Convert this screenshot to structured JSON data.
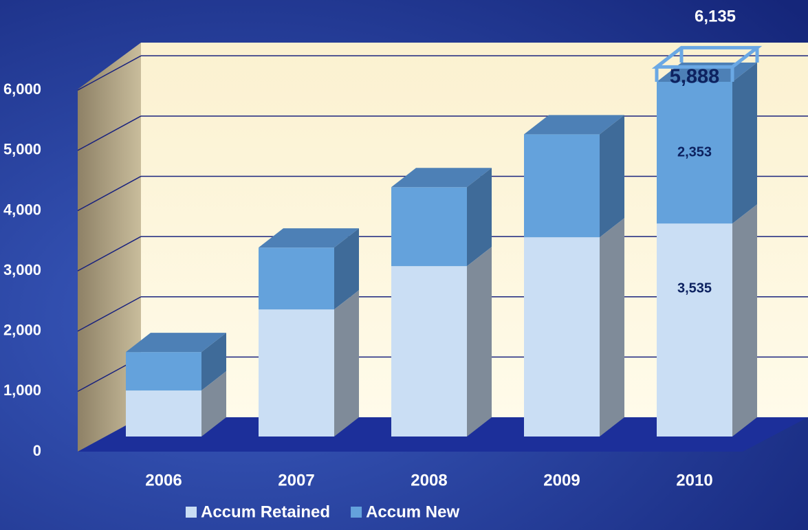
{
  "chart_data": {
    "type": "bar3d_stacked",
    "categories": [
      "2006",
      "2007",
      "2008",
      "2009",
      "2010"
    ],
    "series": [
      {
        "name": "Accum Retained",
        "color": "#cadef4",
        "values": [
          764,
          2109,
          2828,
          3307,
          3535
        ],
        "value_labels": [
          null,
          null,
          null,
          null,
          "3,535"
        ]
      },
      {
        "name": "Accum New",
        "color": "#64a2dc",
        "values": [
          638,
          1027,
          1311,
          1710,
          2353
        ],
        "value_labels": [
          null,
          null,
          null,
          null,
          "2,353"
        ]
      }
    ],
    "annotations": [
      {
        "value": 5888,
        "label": "5,888"
      },
      {
        "value": 6135,
        "label": "6,135"
      }
    ],
    "ylim": [
      0,
      6000
    ],
    "yticks": [
      {
        "value": 0,
        "label": "0"
      },
      {
        "value": 1000,
        "label": "1,000"
      },
      {
        "value": 2000,
        "label": "2,000"
      },
      {
        "value": 3000,
        "label": "3,000"
      },
      {
        "value": 4000,
        "label": "4,000"
      },
      {
        "value": 5000,
        "label": "5,000"
      },
      {
        "value": 6000,
        "label": "6,000"
      }
    ],
    "grid": true,
    "legend": "bottom"
  }
}
